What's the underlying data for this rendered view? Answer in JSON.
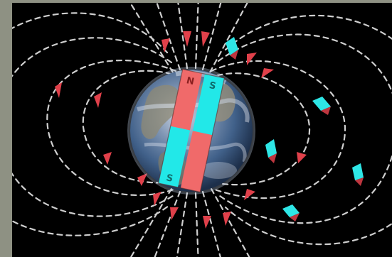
{
  "image": {
    "subject": "earth-magnetic-field-illustration",
    "colors": {
      "frame": "#8e9183",
      "background": "#000000",
      "field_lines": "#e8e8e8",
      "north_magnet": "#f06a6a",
      "south_magnet": "#22e8e8",
      "arrow_red": "#e0404a",
      "arrow_cyan": "#2ee6e6",
      "ocean": "#3a5f8c",
      "land": "#8a8a78"
    }
  },
  "labels": {
    "north": "N",
    "south": "S"
  }
}
